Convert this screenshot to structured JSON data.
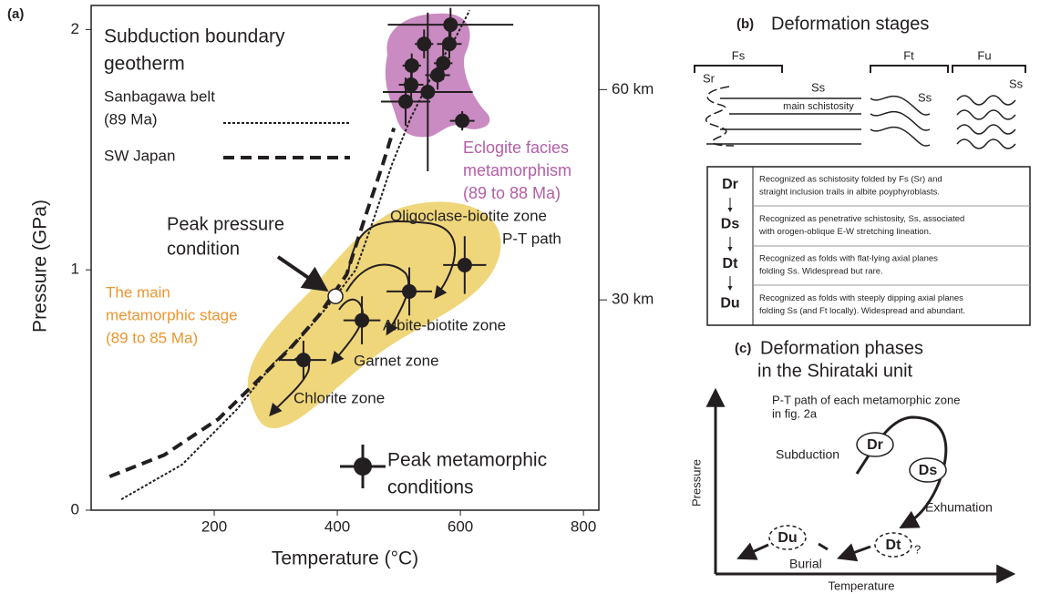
{
  "chart_data": {
    "type": "scatter",
    "panel_label": "(a)",
    "x_label": "Temperature (°C)",
    "y_label": "Pressure (GPa)",
    "xlim": [
      0,
      825
    ],
    "xticks": [
      200,
      400,
      600,
      800
    ],
    "ylim": [
      0,
      2.1
    ],
    "yticks": [
      0,
      1,
      2
    ],
    "y2lim": [
      0,
      72
    ],
    "y2ticks": [
      {
        "value": 30,
        "label": "30 km"
      },
      {
        "value": 60,
        "label": "60 km"
      }
    ],
    "legend_title": [
      "Subduction boundary",
      "geotherm"
    ],
    "series": [
      {
        "name": [
          "Sanbagawa belt",
          "(89 Ma)"
        ],
        "type": "line",
        "style": "dotted",
        "color": "#231f20",
        "x": [
          49,
          148,
          237,
          296,
          341,
          385,
          430,
          459,
          489,
          519,
          556,
          593,
          615
        ],
        "values": [
          0.045,
          0.19,
          0.42,
          0.61,
          0.72,
          0.85,
          1.0,
          1.21,
          1.44,
          1.63,
          1.82,
          1.97,
          2.08
        ]
      },
      {
        "name": [
          "SW Japan"
        ],
        "type": "line",
        "style": "dashed",
        "color": "#231f20",
        "x": [
          30,
          119,
          207,
          267,
          326,
          370,
          415,
          444,
          474,
          492
        ],
        "values": [
          0.14,
          0.23,
          0.38,
          0.53,
          0.68,
          0.81,
          0.98,
          1.21,
          1.44,
          1.59
        ]
      },
      {
        "name": [
          "Peak metamorphic",
          "conditions"
        ],
        "type": "errorbar",
        "color": "#231f20",
        "x": [
          345,
          440,
          517,
          607,
          511,
          520,
          521,
          541,
          547,
          563,
          572,
          582,
          584,
          603
        ],
        "values": [
          0.625,
          0.79,
          0.91,
          1.02,
          1.7,
          1.77,
          1.85,
          1.94,
          1.74,
          1.81,
          1.86,
          1.94,
          2.02,
          1.62
        ],
        "xerr": [
          37,
          30,
          37,
          35,
          40,
          20,
          15,
          15,
          73,
          20,
          15,
          20,
          102,
          20
        ],
        "yerr": [
          0.08,
          0.1,
          0.1,
          0.12,
          0.1,
          0.06,
          0.05,
          0.06,
          0.33,
          0.06,
          0.07,
          0.06,
          0.07,
          0.04
        ]
      },
      {
        "name": [
          "Peak pressure",
          "condition"
        ],
        "type": "scatter",
        "color": "#ffffff",
        "x": [
          397
        ],
        "values": [
          0.89
        ]
      }
    ],
    "annotations": [
      {
        "lines": [
          "Eclogite facies",
          "metamorphism",
          "(89 to 88 Ma)"
        ],
        "color": "#b35ea7"
      },
      {
        "lines": [
          "Oligoclase-biotite zone"
        ],
        "color": "#231f20"
      },
      {
        "lines": [
          "P-T path"
        ],
        "color": "#231f20"
      },
      {
        "lines": [
          "The main",
          "metamorphic stage",
          "(89 to 85 Ma)"
        ],
        "color": "#ec962f"
      },
      {
        "lines": [
          "Albite-biotite zone"
        ],
        "color": "#231f20"
      },
      {
        "lines": [
          "Garnet zone"
        ],
        "color": "#231f20"
      },
      {
        "lines": [
          "Chlorite zone"
        ],
        "color": "#231f20"
      }
    ],
    "regions": [
      {
        "color": "#c98bc1"
      },
      {
        "color": "#efd67b"
      }
    ]
  },
  "panel_b": {
    "label": "(b)",
    "title": "Deformation stages",
    "fold_labels": [
      "Fs",
      "Ft",
      "Fu"
    ],
    "surface_labels": [
      "Sr",
      "Ss",
      "Ss",
      "Ss"
    ],
    "main_schistosity": "main schistosity",
    "stages": [
      {
        "name": "Dr",
        "description": [
          "Recognized as schistosity folded by Fs (Sr) and",
          "straight inclusion trails in albite poyphyroblasts."
        ]
      },
      {
        "name": "Ds",
        "description": [
          "Recognized as penetrative schistosity, Ss, associated",
          "with orogen-oblique E-W stretching lineation."
        ]
      },
      {
        "name": "Dt",
        "description": [
          "Recognized as folds with flat-lying axial planes",
          "folding Ss. Widespread but rare."
        ]
      },
      {
        "name": "Du",
        "description": [
          "Recognized as folds with steeply dipping axial planes",
          "folding Ss (and Ft locally). Widespread and abundant."
        ]
      }
    ]
  },
  "panel_c": {
    "label": "(c)",
    "title": [
      "Deformation phases",
      "in the Shirataki unit"
    ],
    "note": [
      "P-T path of each metamorphic zone",
      "in fig. 2a"
    ],
    "x_label": "Temperature",
    "y_label": "Pressure",
    "phases": [
      "Dr",
      "Ds",
      "Dt",
      "Du"
    ],
    "process_labels": [
      "Subduction",
      "Exhumation",
      "Burial"
    ],
    "uncertain": "?"
  }
}
